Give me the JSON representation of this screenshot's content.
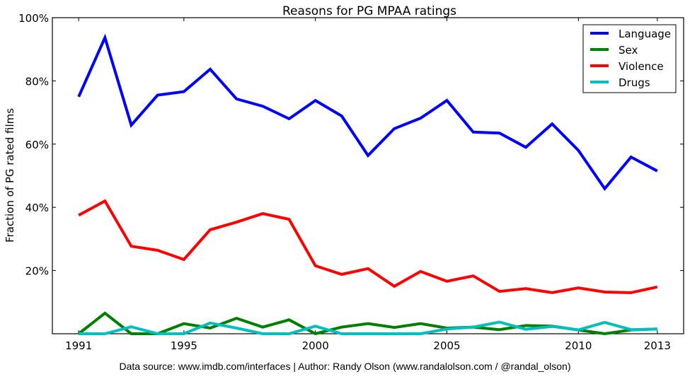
{
  "chart_data": {
    "type": "line",
    "title": "Reasons for PG MPAA ratings",
    "xlabel": "",
    "ylabel": "Fraction of PG rated films",
    "x": [
      1991,
      1992,
      1993,
      1994,
      1995,
      1996,
      1997,
      1998,
      1999,
      2000,
      2001,
      2002,
      2003,
      2004,
      2005,
      2006,
      2007,
      2008,
      2009,
      2010,
      2011,
      2012,
      2013
    ],
    "xlim": [
      1990,
      2014
    ],
    "ylim": [
      0,
      100
    ],
    "xticks": [
      1991,
      1995,
      2000,
      2005,
      2010,
      2013
    ],
    "xtick_labels": [
      "1991",
      "1995",
      "2000",
      "2005",
      "2010",
      "2013"
    ],
    "yticks": [
      20,
      40,
      60,
      80,
      100
    ],
    "ytick_labels": [
      "20%",
      "40%",
      "60%",
      "80%",
      "100%"
    ],
    "grid": false,
    "legend_position": "top-right",
    "series": [
      {
        "name": "Language",
        "color": "#0000ff",
        "values": [
          75,
          93.7,
          66,
          75.5,
          76.6,
          83.7,
          74.3,
          72,
          68,
          73.8,
          68.9,
          56.4,
          64.9,
          68.2,
          73.8,
          63.8,
          63.5,
          59,
          66.4,
          58,
          45.9,
          55.9,
          51.5
        ]
      },
      {
        "name": "Sex",
        "color": "#008000",
        "values": [
          0,
          6.5,
          0,
          0,
          3.2,
          1.8,
          4.9,
          2.1,
          4.4,
          0,
          2.1,
          3.2,
          2,
          3.2,
          1.8,
          2.1,
          1.3,
          2.6,
          2.4,
          1.2,
          0,
          1.2,
          1.5
        ]
      },
      {
        "name": "Violence",
        "color": "#ff0000",
        "values": [
          37.5,
          42,
          27.7,
          26.4,
          23.5,
          32.9,
          35.3,
          38,
          36.2,
          21.5,
          18.8,
          20.6,
          15,
          19.7,
          16.6,
          18.3,
          13.4,
          14.3,
          13,
          14.5,
          13.2,
          13,
          14.8
        ]
      },
      {
        "name": "Drugs",
        "color": "#00bfbf",
        "values": [
          0,
          0,
          2.2,
          0,
          0,
          3.4,
          1.8,
          0,
          0,
          2.4,
          0,
          0,
          0,
          0,
          1.5,
          2.1,
          3.7,
          1.4,
          2.3,
          1.2,
          3.6,
          1.3,
          1.5
        ]
      }
    ]
  },
  "footer": {
    "source_text": "Data source: www.imdb.com/interfaces | Author: Randy Olson (www.randalolson.com / @randal_olson)"
  }
}
